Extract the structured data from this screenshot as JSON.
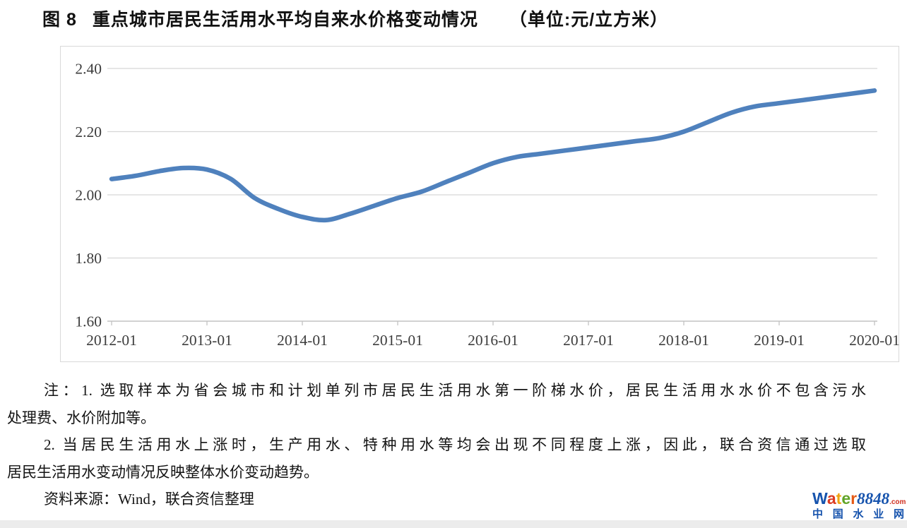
{
  "title": {
    "figure_label": "图 8",
    "text": "重点城市居民生活用水平均自来水价格变动情况",
    "unit": "（单位:元/立方米）"
  },
  "chart_data": {
    "type": "line",
    "title": "重点城市居民生活用水平均自来水价格变动情况",
    "unit_label": "元/立方米",
    "x": [
      "2012-01",
      "2012-04",
      "2012-07",
      "2012-10",
      "2013-01",
      "2013-04",
      "2013-07",
      "2013-10",
      "2014-01",
      "2014-04",
      "2014-07",
      "2014-10",
      "2015-01",
      "2015-04",
      "2015-07",
      "2015-10",
      "2016-01",
      "2016-04",
      "2016-07",
      "2016-10",
      "2017-01",
      "2017-04",
      "2017-07",
      "2017-10",
      "2018-01",
      "2018-04",
      "2018-07",
      "2018-10",
      "2019-01",
      "2019-04",
      "2019-07",
      "2019-10",
      "2020-01"
    ],
    "values": [
      2.05,
      2.06,
      2.075,
      2.085,
      2.08,
      2.05,
      1.99,
      1.955,
      1.93,
      1.92,
      1.94,
      1.965,
      1.99,
      2.01,
      2.04,
      2.07,
      2.1,
      2.12,
      2.13,
      2.14,
      2.15,
      2.16,
      2.17,
      2.18,
      2.2,
      2.23,
      2.26,
      2.28,
      2.29,
      2.3,
      2.31,
      2.32,
      2.33
    ],
    "ylim": [
      1.6,
      2.4
    ],
    "ytick_labels": [
      "1.60",
      "1.80",
      "2.00",
      "2.20",
      "2.40"
    ],
    "xtick_labels": [
      "2012-01",
      "2013-01",
      "2014-01",
      "2015-01",
      "2016-01",
      "2017-01",
      "2018-01",
      "2019-01",
      "2020-01"
    ],
    "line_color": "#4f81bd",
    "grid": true,
    "legend": "none"
  },
  "notes": {
    "lines": [
      {
        "text": "注：1. 选取样本为省会城市和计划单列市居民生活用水第一阶梯水价，居民生活用水水价不包含污水"
      },
      {
        "text": "处理费、水价附加等。"
      },
      {
        "text": "2. 当居民生活用水上涨时，生产用水、特种用水等均会出现不同程度上涨，因此，联合资信通过选取"
      },
      {
        "text": "居民生活用水变动情况反映整体水价变动趋势。"
      },
      {
        "text": "资料来源：Wind，联合资信整理"
      }
    ]
  },
  "logo": {
    "letters": [
      {
        "ch": "W",
        "color": "#1653ad"
      },
      {
        "ch": "a",
        "color": "#dc3b21"
      },
      {
        "ch": "t",
        "color": "#f0a312"
      },
      {
        "ch": "e",
        "color": "#61a428"
      },
      {
        "ch": "r",
        "color": "#e55813"
      }
    ],
    "number": "8848",
    "number_color": "#1653ad",
    "tld": ".com",
    "tld_color": "#d03020",
    "subtitle": "中国水业网",
    "subtitle_color": "#1653ad"
  }
}
